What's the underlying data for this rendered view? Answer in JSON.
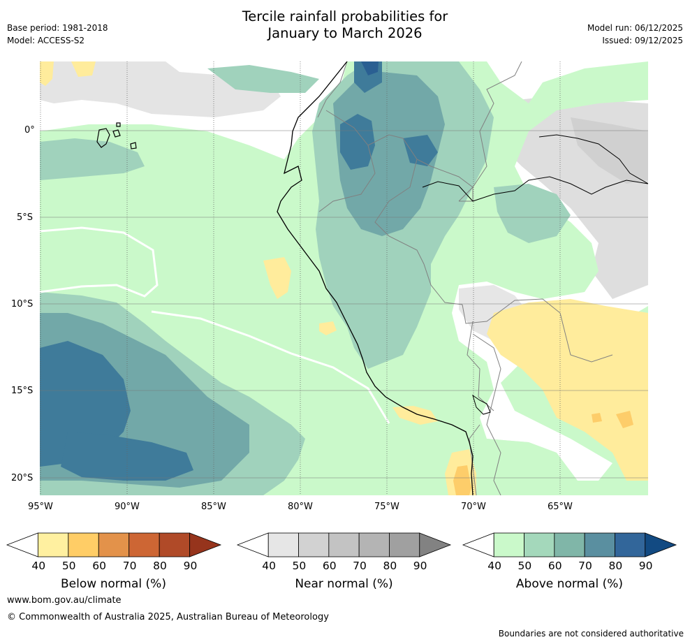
{
  "header": {
    "title_line1": "Tercile rainfall probabilities for",
    "title_line2": "January to March 2026",
    "base_period": "Base period: 1981-2018",
    "model": "Model: ACCESS-S2",
    "model_run": "Model run: 06/12/2025",
    "issued": "Issued: 09/12/2025"
  },
  "axes": {
    "longitude_labels": [
      "95°W",
      "90°W",
      "85°W",
      "80°W",
      "75°W",
      "70°W",
      "65°W"
    ],
    "latitude_labels": [
      "0°",
      "5°S",
      "10°S",
      "15°S",
      "20°S"
    ]
  },
  "colorbars": [
    {
      "name": "below",
      "label": "Below normal (%)",
      "ticks": [
        "40",
        "50",
        "60",
        "70",
        "80",
        "90"
      ],
      "colors": [
        "#ffffff",
        "#fff0a0",
        "#ffcd66",
        "#e3924a",
        "#cd6634",
        "#b04a28",
        "#96341c"
      ]
    },
    {
      "name": "near",
      "label": "Near normal (%)",
      "ticks": [
        "40",
        "50",
        "60",
        "70",
        "80",
        "90"
      ],
      "colors": [
        "#ffffff",
        "#e6e6e6",
        "#d2d2d2",
        "#c3c3c3",
        "#b4b4b4",
        "#a0a0a0",
        "#828282"
      ]
    },
    {
      "name": "above",
      "label": "Above normal (%)",
      "ticks": [
        "40",
        "50",
        "60",
        "70",
        "80",
        "90"
      ],
      "colors": [
        "#ffffff",
        "#caf9ca",
        "#a4d8bb",
        "#80b6a8",
        "#5a8fa0",
        "#32669a",
        "#124a82"
      ]
    }
  ],
  "map_colors": {
    "ocean_white": "#ffffff",
    "above_40": "#caf9ca",
    "above_50": "#a0d2bc",
    "above_60": "#72a8a8",
    "above_70": "#3f7b9a",
    "above_80": "#2a5f92",
    "near_40": "#e6e6e6",
    "near_50": "#d4d4d4",
    "below_40": "#ffec9c",
    "below_50": "#fdcd6a",
    "coast": "#000000",
    "border": "#808080",
    "grid": "#555555"
  },
  "footer": {
    "website": "www.bom.gov.au/climate",
    "copyright": "© Commonwealth of Australia 2025, Australian Bureau of Meteorology",
    "disclaimer": "Boundaries are not considered authoritative"
  }
}
